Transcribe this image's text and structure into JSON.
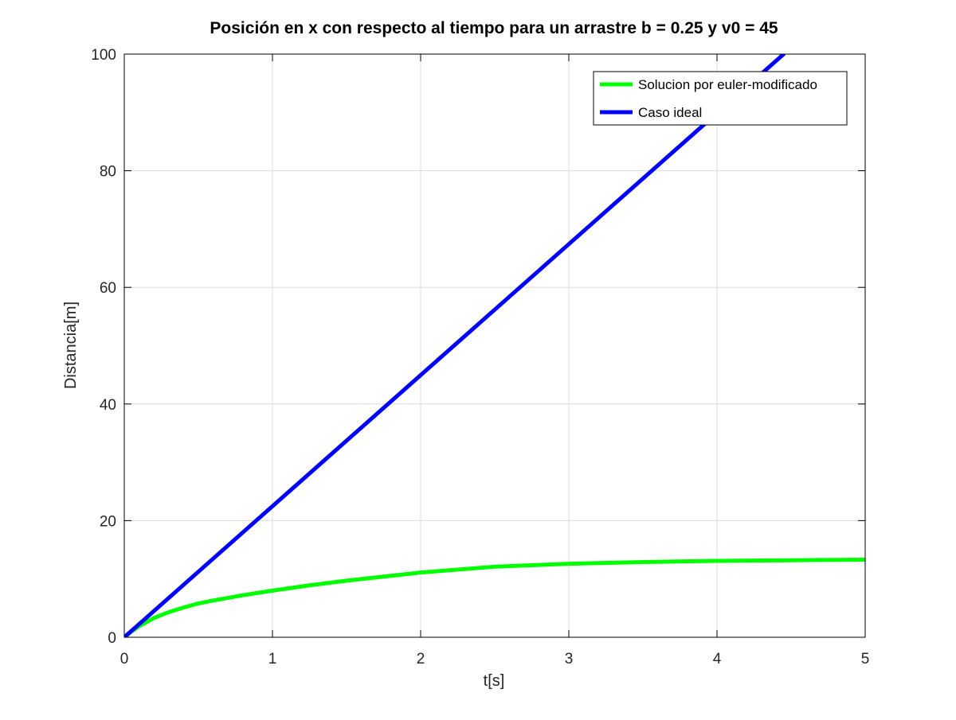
{
  "chart_data": {
    "type": "line",
    "title": "Posición en x con respecto al tiempo para un arrastre b = 0.25 y  v0 = 45",
    "xlabel": "t[s]",
    "ylabel": "Distancia[m]",
    "xlim": [
      0,
      5
    ],
    "ylim": [
      0,
      100
    ],
    "xticks": [
      0,
      1,
      2,
      3,
      4,
      5
    ],
    "yticks": [
      0,
      20,
      40,
      60,
      80,
      100
    ],
    "grid": true,
    "legend_position": "top-right",
    "series": [
      {
        "name": "Solucion por euler-modificado",
        "color": "#00ff00",
        "x": [
          0,
          0.05,
          0.1,
          0.15,
          0.2,
          0.3,
          0.4,
          0.5,
          0.6,
          0.8,
          1.0,
          1.25,
          1.5,
          1.75,
          2.0,
          2.5,
          3.0,
          3.5,
          4.0,
          4.5,
          5.0
        ],
        "y": [
          0,
          1.0,
          1.9,
          2.6,
          3.3,
          4.3,
          5.1,
          5.8,
          6.3,
          7.2,
          8.0,
          8.9,
          9.7,
          10.4,
          11.1,
          12.1,
          12.6,
          12.9,
          13.1,
          13.2,
          13.3
        ]
      },
      {
        "name": "Caso ideal",
        "color": "#0000ff",
        "x": [
          0,
          4.45
        ],
        "y": [
          0,
          100
        ]
      }
    ]
  }
}
